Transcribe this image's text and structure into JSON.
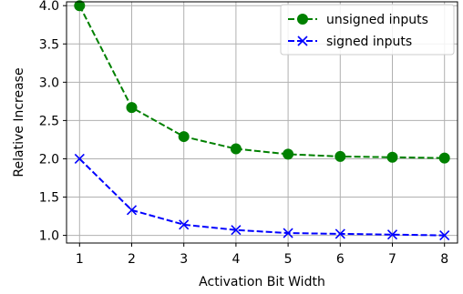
{
  "chart_data": {
    "type": "line",
    "title": "",
    "xlabel": "Activation Bit Width",
    "ylabel": "Relative Increase",
    "x": [
      1,
      2,
      3,
      4,
      5,
      6,
      7,
      8
    ],
    "xlim": [
      0.75,
      8.25
    ],
    "ylim": [
      0.9,
      4.05
    ],
    "xticks": [
      "1",
      "2",
      "3",
      "4",
      "5",
      "6",
      "7",
      "8"
    ],
    "yticks": [
      "1.0",
      "1.5",
      "2.0",
      "2.5",
      "3.0",
      "3.5",
      "4.0"
    ],
    "grid": true,
    "legend_position": "top-right",
    "series": [
      {
        "name": "unsigned inputs",
        "color": "#008000",
        "marker": "circle",
        "linestyle": "dashed",
        "values": [
          4.0,
          2.67,
          2.29,
          2.13,
          2.06,
          2.03,
          2.02,
          2.01
        ]
      },
      {
        "name": "signed inputs",
        "color": "#0000ff",
        "marker": "x",
        "linestyle": "dashed",
        "values": [
          2.0,
          1.33,
          1.14,
          1.07,
          1.03,
          1.02,
          1.01,
          1.0
        ]
      }
    ]
  }
}
